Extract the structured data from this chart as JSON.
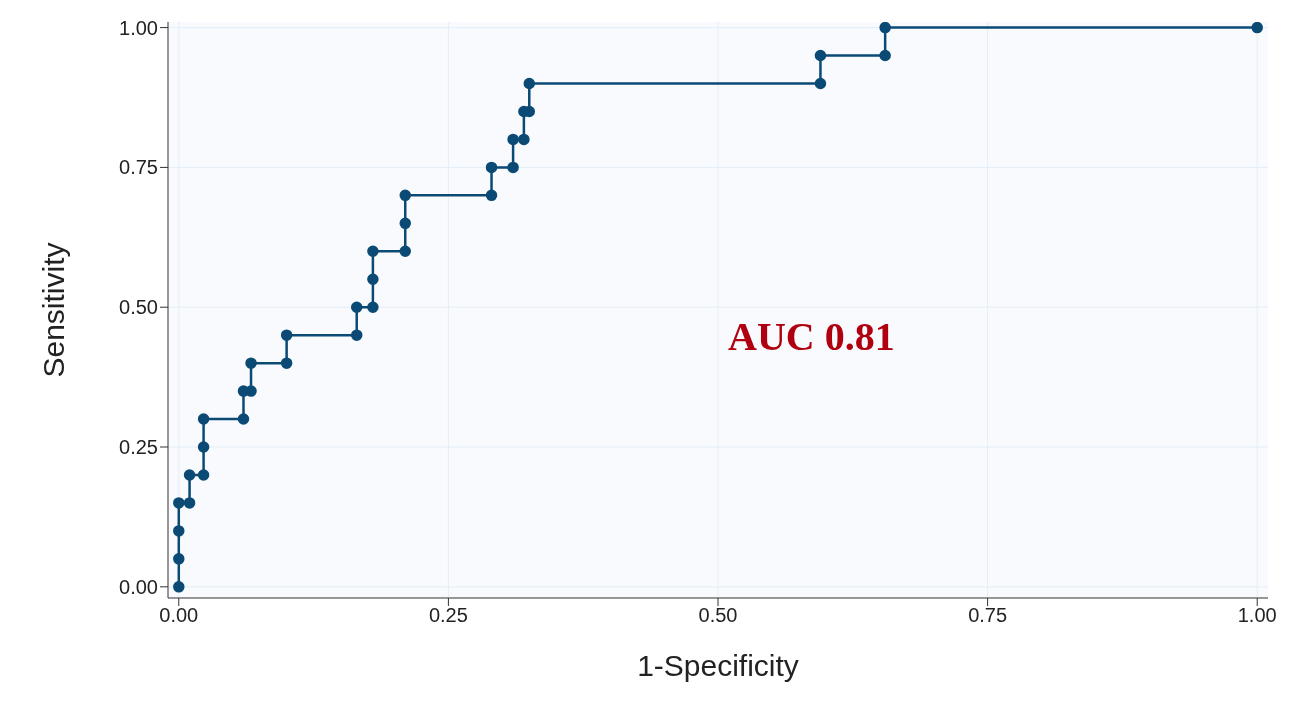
{
  "chart_data": {
    "type": "line",
    "xlabel": "1-Specificity",
    "ylabel": "Sensitivity",
    "annotations": [
      "AUC 0.81"
    ],
    "x": [
      0,
      0,
      0,
      0,
      0.01,
      0.01,
      0.023,
      0.023,
      0.023,
      0.06,
      0.06,
      0.067,
      0.067,
      0.1,
      0.1,
      0.165,
      0.165,
      0.18,
      0.18,
      0.18,
      0.21,
      0.21,
      0.21,
      0.29,
      0.29,
      0.31,
      0.31,
      0.32,
      0.32,
      0.325,
      0.325,
      0.595,
      0.595,
      0.655,
      0.655,
      1
    ],
    "series": [
      {
        "color": "#0b4a75",
        "values": [
          0,
          0.05,
          0.1,
          0.15,
          0.15,
          0.2,
          0.2,
          0.25,
          0.3,
          0.3,
          0.35,
          0.35,
          0.4,
          0.4,
          0.45,
          0.45,
          0.5,
          0.5,
          0.55,
          0.6,
          0.6,
          0.65,
          0.7,
          0.7,
          0.75,
          0.75,
          0.8,
          0.8,
          0.85,
          0.85,
          0.9,
          0.9,
          0.95,
          0.95,
          1,
          1
        ]
      }
    ],
    "xlim": [
      -0.01,
      1.01
    ],
    "ylim": [
      -0.02,
      1.01
    ],
    "xticks": [
      {
        "value": 0,
        "label": "0.00"
      },
      {
        "value": 0.25,
        "label": "0.25"
      },
      {
        "value": 0.5,
        "label": "0.50"
      },
      {
        "value": 0.75,
        "label": "0.75"
      },
      {
        "value": 1,
        "label": "1.00"
      }
    ],
    "yticks": [
      {
        "value": 0,
        "label": "0.00"
      },
      {
        "value": 0.25,
        "label": "0.25"
      },
      {
        "value": 0.5,
        "label": "0.50"
      },
      {
        "value": 0.75,
        "label": "0.75"
      },
      {
        "value": 1,
        "label": "1.00"
      }
    ],
    "grid": true,
    "marker": "circle",
    "line_style": "solid"
  }
}
